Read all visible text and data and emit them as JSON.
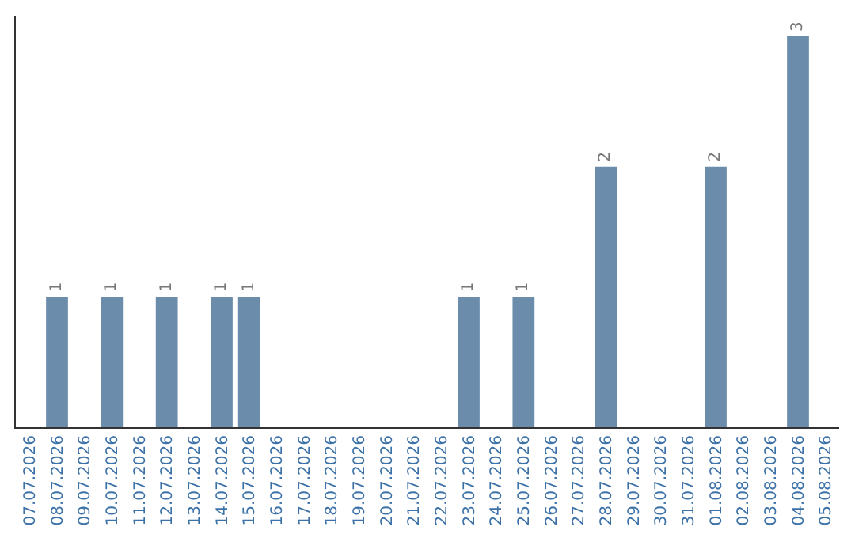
{
  "chart_data": {
    "type": "bar",
    "categories": [
      "07.07.2026",
      "08.07.2026",
      "09.07.2026",
      "10.07.2026",
      "11.07.2026",
      "12.07.2026",
      "13.07.2026",
      "14.07.2026",
      "15.07.2026",
      "16.07.2026",
      "17.07.2026",
      "18.07.2026",
      "19.07.2026",
      "20.07.2026",
      "21.07.2026",
      "22.07.2026",
      "23.07.2026",
      "24.07.2026",
      "25.07.2026",
      "26.07.2026",
      "27.07.2026",
      "28.07.2026",
      "29.07.2026",
      "30.07.2026",
      "31.07.2026",
      "01.08.2026",
      "02.08.2026",
      "03.08.2026",
      "04.08.2026",
      "05.08.2026"
    ],
    "values": [
      null,
      1,
      null,
      1,
      null,
      1,
      null,
      1,
      1,
      null,
      null,
      null,
      null,
      null,
      null,
      null,
      1,
      null,
      1,
      null,
      null,
      2,
      null,
      null,
      null,
      2,
      null,
      null,
      3,
      null
    ],
    "color": "#6b8cab",
    "data_labels": true,
    "tick_labels": "x",
    "grid": false,
    "legend": false
  }
}
